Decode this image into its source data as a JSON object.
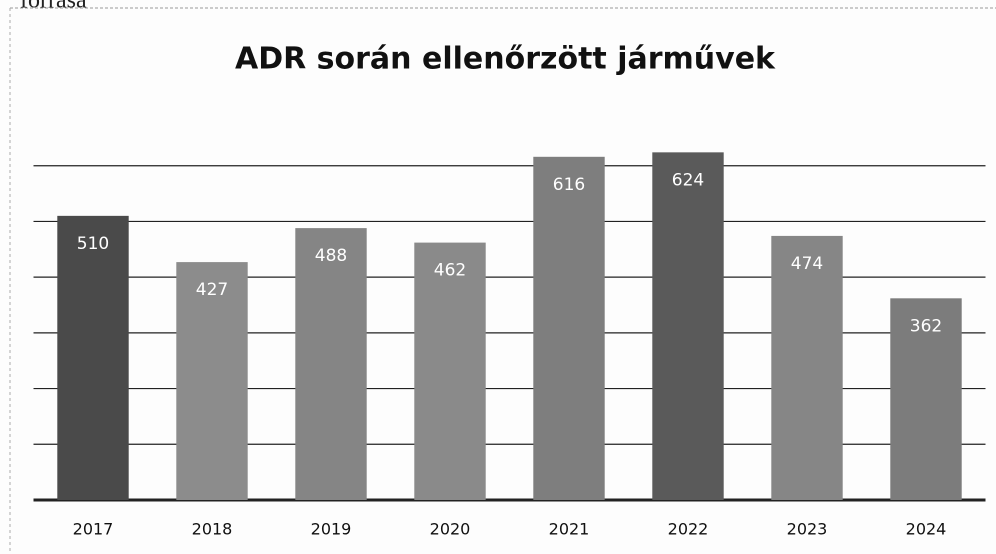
{
  "page_text": "forrása",
  "chart_data": {
    "type": "bar",
    "title": "ADR során ellenőrzött járművek",
    "categories": [
      "2017",
      "2018",
      "2019",
      "2020",
      "2021",
      "2022",
      "2023",
      "2024"
    ],
    "values": [
      510,
      427,
      488,
      462,
      616,
      624,
      474,
      362
    ],
    "colors": [
      "#4a4a4a",
      "#8c8c8c",
      "#858585",
      "#8a8a8a",
      "#7e7e7e",
      "#5a5a5a",
      "#868686",
      "#7c7c7c"
    ],
    "ylim": [
      0,
      700
    ],
    "yticks": [
      0,
      100,
      200,
      300,
      400,
      500,
      600
    ],
    "grid": true
  }
}
